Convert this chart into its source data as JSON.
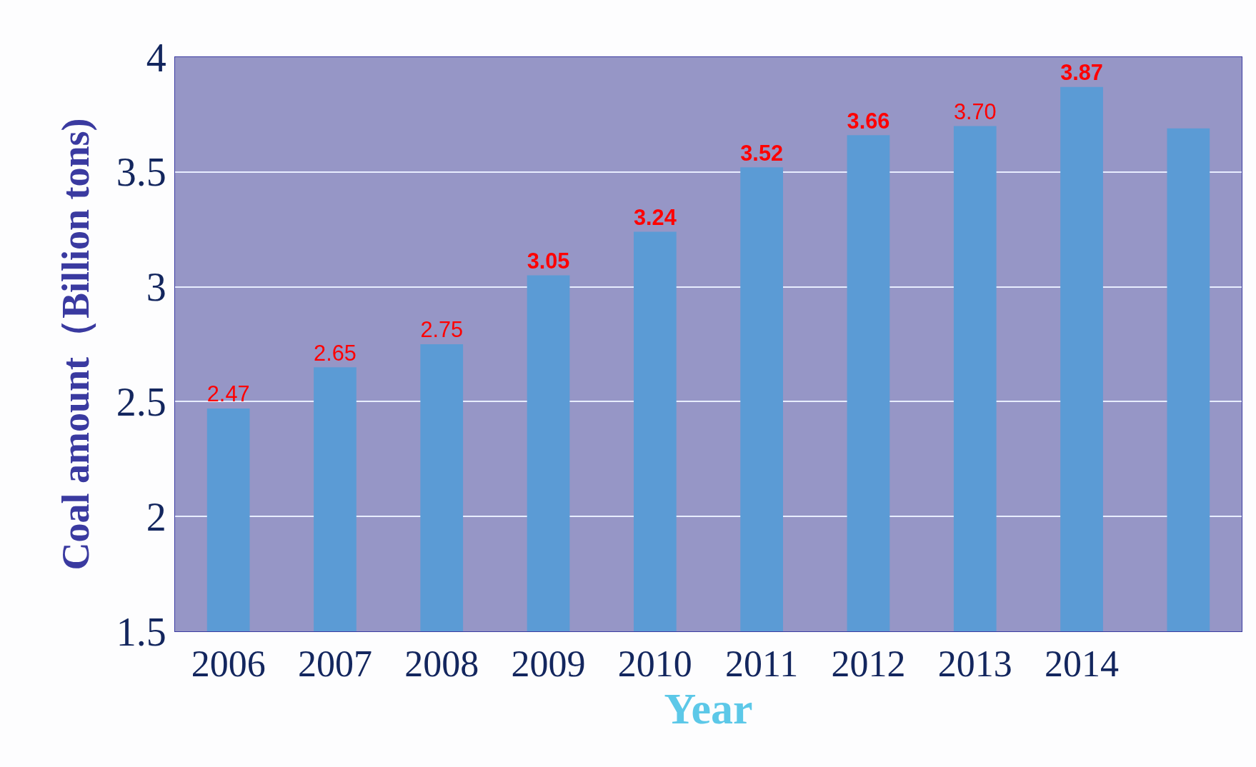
{
  "chart_data": {
    "type": "bar",
    "xlabel": "Year",
    "ylabel": "Coal amount（Billion tons)",
    "categories": [
      "2006",
      "2007",
      "2008",
      "2009",
      "2010",
      "2011",
      "2012",
      "2013",
      "2014",
      null
    ],
    "values": [
      2.47,
      2.65,
      2.75,
      3.05,
      3.24,
      3.52,
      3.66,
      3.7,
      3.87,
      3.69
    ],
    "value_labels": [
      "2.47",
      "2.65",
      "2.75",
      "3.05",
      "3.24",
      "3.52",
      "3.66",
      "3.70",
      "3.87",
      null
    ],
    "color": "#5b9bd5",
    "ylim": [
      1.5,
      4
    ],
    "yticks": [
      1.5,
      2,
      2.5,
      3,
      3.5,
      4
    ],
    "grid": "y"
  }
}
